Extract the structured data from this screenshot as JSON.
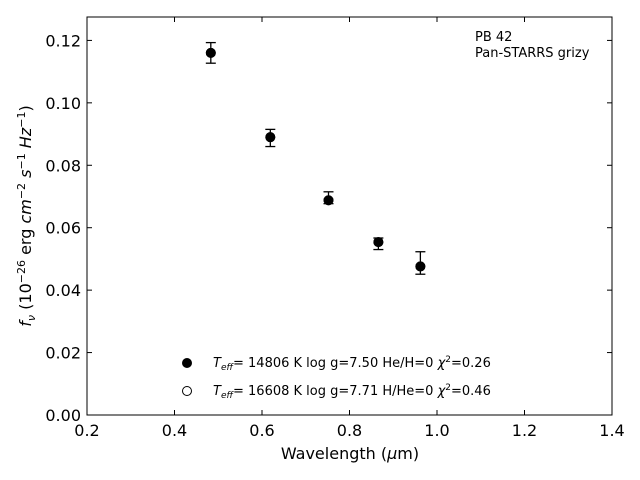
{
  "chart_data": {
    "type": "scatter",
    "title": "",
    "xlabel": "Wavelength (μm)",
    "ylabel": "f_ν (10^-26 erg cm^-2 s^-1 Hz^-1)",
    "xlim": [
      0.2,
      1.4
    ],
    "ylim": [
      0.0,
      0.1275
    ],
    "xticks": [
      0.2,
      0.4,
      0.6,
      0.8,
      1.0,
      1.2,
      1.4
    ],
    "xtick_labels": [
      "0.2",
      "0.4",
      "0.6",
      "0.8",
      "1.0",
      "1.2",
      "1.4"
    ],
    "yticks": [
      0.0,
      0.02,
      0.04,
      0.06,
      0.08,
      0.1,
      0.12
    ],
    "ytick_labels": [
      "0.00",
      "0.02",
      "0.04",
      "0.06",
      "0.08",
      "0.10",
      "0.12"
    ],
    "grid": false,
    "tick_direction": "in",
    "annotations": [
      "PB 42",
      "Pan-STARRS grizy"
    ],
    "annotation_placement": "top-right",
    "legend_placement": "bottom-center",
    "observed": {
      "x": [
        0.483,
        0.619,
        0.752,
        0.866,
        0.962
      ],
      "y": [
        0.116,
        0.089,
        0.0688,
        0.0554,
        0.0476
      ],
      "yerr_low": [
        0.0033,
        0.003,
        0.0011,
        0.0024,
        0.0025
      ],
      "yerr_high": [
        0.0033,
        0.0025,
        0.0027,
        0.0013,
        0.0047
      ],
      "color": "#000000"
    },
    "series": [
      {
        "name": "T_eff= 14806 K  log g=7.50  He/H=0  χ²=0.26",
        "marker": "filled-circle",
        "x": [
          0.483,
          0.619,
          0.752,
          0.866,
          0.962
        ],
        "y": [
          0.116,
          0.089,
          0.0688,
          0.0554,
          0.0476
        ]
      },
      {
        "name": "T_eff= 16608 K  log g=7.71  H/He=0  χ²=0.46",
        "marker": "open-circle",
        "x": [
          0.483,
          0.619,
          0.752,
          0.866,
          0.962
        ],
        "y": [
          0.116,
          0.089,
          0.0688,
          0.0554,
          0.0476
        ]
      }
    ]
  }
}
